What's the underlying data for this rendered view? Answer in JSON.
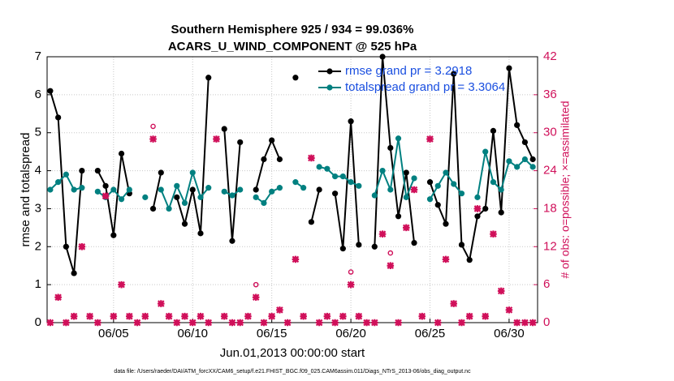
{
  "chart_data": {
    "type": "line",
    "title": "Southern Hemisphere 925 / 934 = 99.036%",
    "subtitle": "ACARS_U_WIND_COMPONENT @ 525 hPa",
    "xlabel": "Jun.01,2013 00:00:00 start",
    "ylabel": "rmse and totalspread",
    "y2label": "# of obs: o=possible; ×=assimilated",
    "footnote": "data file: /Users/raeder/DAI/ATM_forcXX/CAM6_setup/f.e21.FHIST_BGC.f09_025.CAM6assim.011/Diags_NTrS_2013-06/obs_diag_output.nc",
    "x": [
      0,
      0.5,
      1,
      1.5,
      2,
      2.5,
      3,
      3.5,
      4,
      4.5,
      5,
      5.5,
      6,
      6.5,
      7,
      7.5,
      8,
      8.5,
      9,
      9.5,
      10,
      10.5,
      11,
      11.5,
      12,
      12.5,
      13,
      13.5,
      14,
      14.5,
      15,
      15.5,
      16,
      16.5,
      17,
      17.5,
      18,
      18.5,
      19,
      19.5,
      20,
      20.5,
      21,
      21.5,
      22,
      22.5,
      23,
      23.5,
      24,
      24.5,
      25,
      25.5,
      26,
      26.5,
      27,
      27.5,
      28,
      28.5,
      29,
      29.5,
      30,
      30.5
    ],
    "xlim": [
      -0.2,
      30.8
    ],
    "xticks": [
      {
        "value": 4,
        "label": "06/05"
      },
      {
        "value": 9,
        "label": "06/10"
      },
      {
        "value": 14,
        "label": "06/15"
      },
      {
        "value": 19,
        "label": "06/20"
      },
      {
        "value": 24,
        "label": "06/25"
      },
      {
        "value": 29,
        "label": "06/30"
      }
    ],
    "ylim": [
      0,
      7
    ],
    "yticks": [
      0,
      1,
      2,
      3,
      4,
      5,
      6,
      7
    ],
    "y2lim": [
      0,
      42
    ],
    "y2ticks": [
      0,
      6,
      12,
      18,
      24,
      30,
      36,
      42
    ],
    "grid": true,
    "legend": "upper right",
    "y2color": "#d0105a",
    "series": [
      {
        "name": "rmse grand pr = 3.2918",
        "color": "#000000",
        "marker": "dot",
        "values": [
          6.1,
          5.4,
          2.0,
          1.3,
          4.0,
          null,
          4.0,
          3.6,
          2.3,
          4.45,
          3.4,
          null,
          null,
          3.0,
          3.95,
          null,
          3.3,
          2.6,
          3.5,
          2.35,
          6.45,
          null,
          5.1,
          2.15,
          4.75,
          null,
          3.5,
          4.3,
          4.8,
          4.3,
          null,
          6.45,
          null,
          2.65,
          3.5,
          null,
          3.4,
          1.95,
          5.3,
          2.05,
          null,
          2.0,
          7.0,
          4.6,
          2.8,
          3.95,
          2.1,
          null,
          3.7,
          3.1,
          2.6,
          6.55,
          2.05,
          1.65,
          2.8,
          3.0,
          5.05,
          2.9,
          6.7,
          5.2,
          4.75,
          4.3
        ]
      },
      {
        "name": "totalspread grand pr = 3.3064",
        "color": "#008080",
        "marker": "dot",
        "values": [
          3.5,
          3.7,
          3.9,
          3.5,
          3.55,
          null,
          3.45,
          3.3,
          3.5,
          3.25,
          3.5,
          null,
          3.3,
          null,
          3.5,
          3.0,
          3.6,
          3.15,
          3.95,
          3.3,
          3.55,
          null,
          3.45,
          3.35,
          3.5,
          null,
          3.3,
          3.15,
          3.45,
          3.55,
          null,
          3.7,
          3.55,
          null,
          4.1,
          4.05,
          3.85,
          3.85,
          3.7,
          3.6,
          null,
          3.35,
          4.0,
          3.5,
          4.85,
          3.3,
          3.8,
          null,
          3.25,
          3.6,
          3.95,
          3.65,
          3.4,
          null,
          3.3,
          4.5,
          3.7,
          3.5,
          4.25,
          4.1,
          4.3,
          4.1
        ]
      },
      {
        "axis": "y2",
        "color": "#d0105a",
        "marker": "circle",
        "values": [
          0,
          4,
          0,
          1,
          12,
          1,
          0,
          20,
          1,
          6,
          1,
          0,
          1,
          31,
          3,
          1,
          0,
          1,
          0,
          1,
          0,
          29,
          1,
          0,
          0,
          1,
          6,
          0,
          1,
          2,
          0,
          10,
          1,
          26,
          0,
          1,
          0,
          1,
          8,
          1,
          0,
          0,
          14,
          11,
          0,
          15,
          21,
          1,
          29,
          0,
          10,
          3,
          0,
          1,
          18,
          1,
          14,
          5,
          2,
          0,
          0,
          0
        ]
      },
      {
        "axis": "y2",
        "color": "#d0105a",
        "marker": "star",
        "values": [
          0,
          4,
          0,
          1,
          12,
          1,
          0,
          20,
          1,
          6,
          1,
          0,
          1,
          29,
          3,
          1,
          0,
          1,
          0,
          1,
          0,
          29,
          1,
          0,
          0,
          1,
          4,
          0,
          1,
          2,
          0,
          10,
          1,
          26,
          0,
          1,
          0,
          1,
          6,
          1,
          0,
          0,
          14,
          9,
          0,
          15,
          21,
          1,
          29,
          0,
          10,
          3,
          0,
          1,
          18,
          1,
          14,
          5,
          2,
          0,
          0,
          0
        ]
      }
    ]
  }
}
